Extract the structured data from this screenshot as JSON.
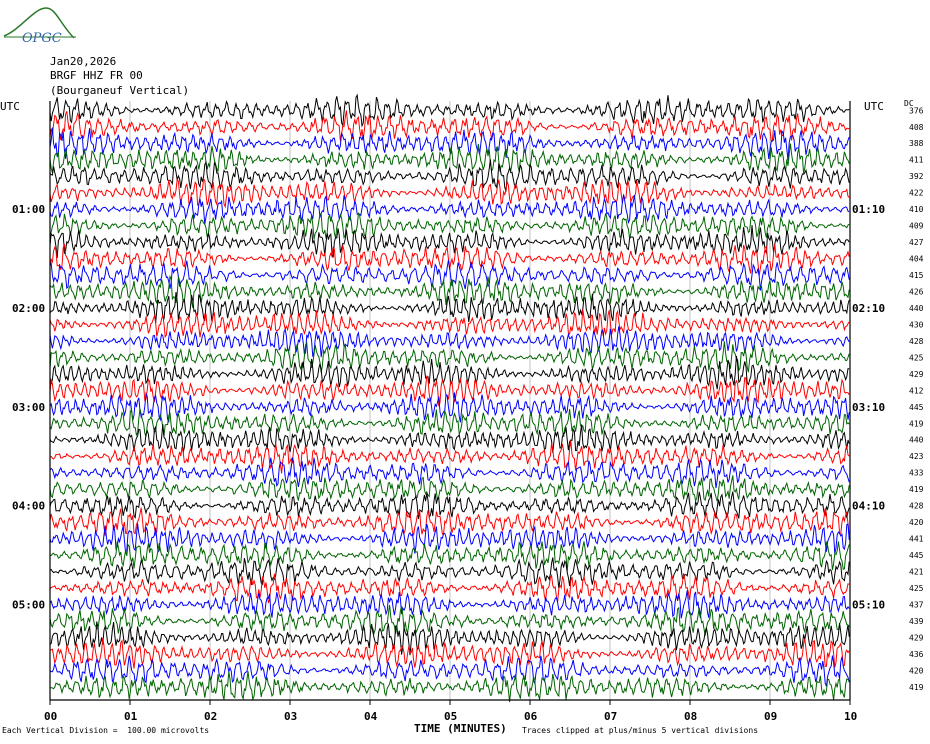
{
  "header": {
    "logo_text": "OPGC",
    "date": "Jan20,2026",
    "station": "BRGF HHZ FR 00",
    "location": "(Bourganeuf Vertical)"
  },
  "left_axis_label": "UTC",
  "right_axis_label": "UTC",
  "dc_label": "DC",
  "footer": {
    "scale_note": "Each Vertical Division =  100.00 microvolts",
    "xlabel": "TIME (MINUTES)",
    "clip_note": "Traces clipped at plus/minus 5 vertical divisions"
  },
  "colors": {
    "cycle": [
      "#000000",
      "#ff0000",
      "#0000ff",
      "#006400"
    ],
    "grid": "#999999",
    "logo": "#2a7a2a",
    "logo_text": "#3366aa"
  },
  "chart_data": {
    "type": "line",
    "title": "",
    "xlabel": "TIME (MINUTES)",
    "ylabel": "UTC",
    "xlim": [
      0,
      10
    ],
    "x_ticks": [
      "00",
      "01",
      "02",
      "03",
      "04",
      "05",
      "06",
      "07",
      "08",
      "09",
      "10"
    ],
    "trace_count": 36,
    "left_hour_labels": [
      "01:00",
      "02:00",
      "03:00",
      "04:00",
      "05:00"
    ],
    "right_hour_labels": [
      "01:10",
      "02:10",
      "03:10",
      "04:10",
      "05:10"
    ],
    "dc_offsets": [
      376,
      408,
      388,
      411,
      392,
      422,
      410,
      409,
      427,
      404,
      415,
      426,
      440,
      430,
      428,
      425,
      429,
      412,
      445,
      419,
      440,
      423,
      433,
      419,
      428,
      420,
      441,
      445,
      421,
      425,
      437,
      439,
      429,
      436,
      420,
      419
    ]
  }
}
